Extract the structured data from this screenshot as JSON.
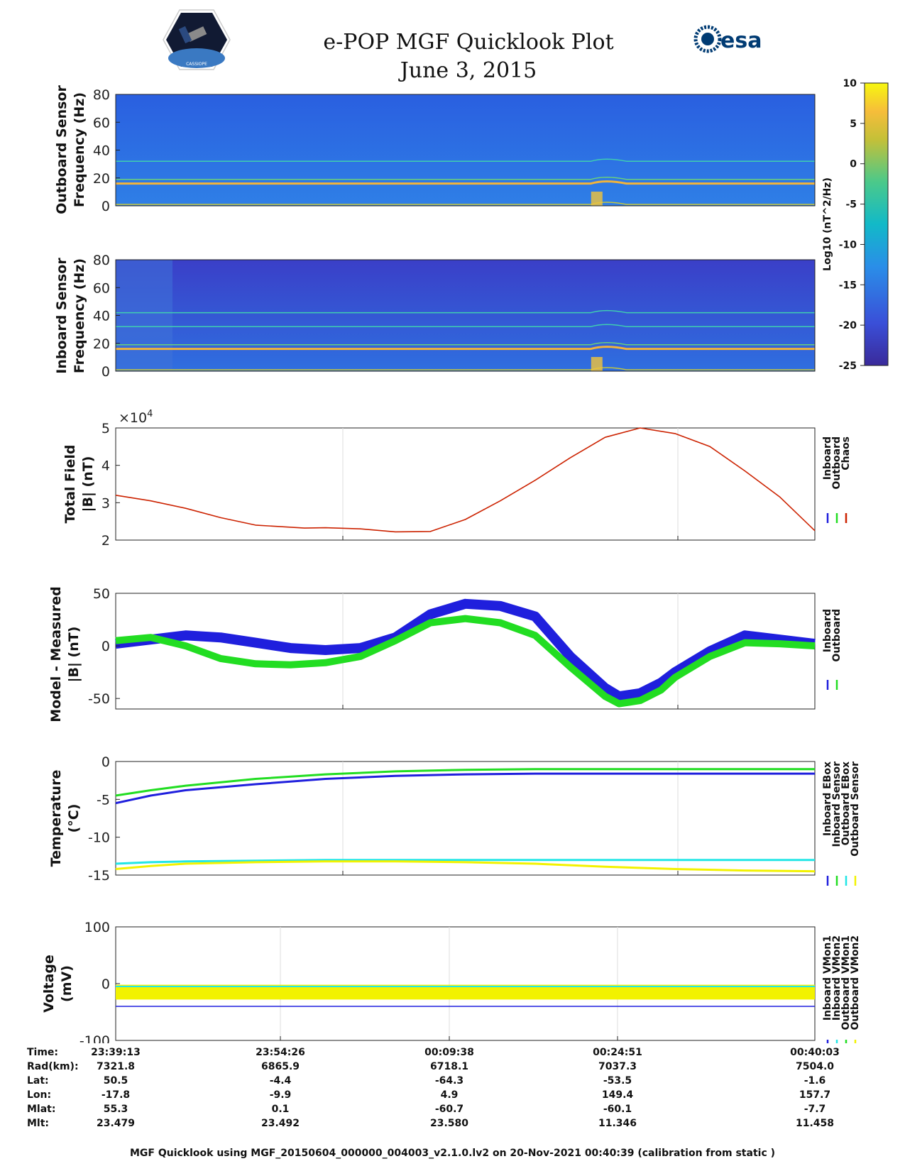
{
  "header": {
    "title_line1": "e-POP MGF Quicklook Plot",
    "title_line2": "June 3, 2015",
    "esa_logo_text": "esa",
    "satellite_logo_caption": "CASSIOPE"
  },
  "colors": {
    "inboard": "#1f1fdd",
    "outboard": "#22dd22",
    "chaos": "#cc2200",
    "inboard_sensor_temp": "#1f1fdd",
    "outboard_ebox": "#22e6e6",
    "outboard_sensor": "#f2f200"
  },
  "footer": "MGF Quicklook using MGF_20150604_000000_004003_v2.1.0.lv2 on 20-Nov-2021 00:40:39 (calibration from static )",
  "table": {
    "labels": [
      "Time:",
      "Rad(km):",
      "Lat:",
      "Lon:",
      "Mlat:",
      "Mlt:"
    ],
    "columns": [
      [
        "23:39:13",
        "7321.8",
        "50.5",
        "-17.8",
        "55.3",
        "23.479"
      ],
      [
        "23:54:26",
        "6865.9",
        "-4.4",
        "-9.9",
        "0.1",
        "23.492"
      ],
      [
        "00:09:38",
        "6718.1",
        "-64.3",
        "4.9",
        "-60.7",
        "23.580"
      ],
      [
        "00:24:51",
        "7037.3",
        "-53.5",
        "149.4",
        "-60.1",
        "11.346"
      ],
      [
        "00:40:03",
        "7504.0",
        "-1.6",
        "157.7",
        "-7.7",
        "11.458"
      ]
    ]
  },
  "chart_data": [
    {
      "type": "heatmap",
      "title": "",
      "ylabel_line1": "Outboard Sensor",
      "ylabel_line2": "Frequency (Hz)",
      "ylim": [
        0,
        80
      ],
      "yticks": [
        "0",
        "20",
        "40",
        "60",
        "80"
      ],
      "bands_hz": [
        1,
        16,
        19,
        32
      ],
      "colorbar": {
        "label": "Log10 (nT^2/Hz)",
        "range": [
          -25,
          10
        ],
        "ticks": [
          "10",
          "5",
          "0",
          "-5",
          "-10",
          "-15",
          "-20",
          "-25"
        ]
      }
    },
    {
      "type": "heatmap",
      "ylabel_line1": "Inboard Sensor",
      "ylabel_line2": "Frequency (Hz)",
      "ylim": [
        0,
        80
      ],
      "yticks": [
        "0",
        "20",
        "40",
        "60",
        "80"
      ],
      "bands_hz": [
        1,
        16,
        19,
        32,
        42
      ]
    },
    {
      "type": "line",
      "ylabel_line1": "Total Field",
      "ylabel_line2": "|B| (nT)",
      "ylim": [
        2,
        5
      ],
      "yticks": [
        "2",
        "3",
        "4",
        "5"
      ],
      "exponent_label": "×10",
      "exponent_power": "4",
      "x": [
        0,
        0.05,
        0.1,
        0.15,
        0.2,
        0.27,
        0.3,
        0.35,
        0.4,
        0.45,
        0.5,
        0.55,
        0.6,
        0.65,
        0.7,
        0.75,
        0.8,
        0.85,
        0.9,
        0.95,
        1.0
      ],
      "values": [
        3.2,
        3.05,
        2.85,
        2.6,
        2.4,
        2.32,
        2.33,
        2.3,
        2.22,
        2.23,
        2.55,
        3.05,
        3.6,
        4.2,
        4.75,
        5.0,
        4.85,
        4.5,
        3.85,
        3.15,
        2.25
      ],
      "series": [
        {
          "name": "Inboard"
        },
        {
          "name": "Outboard"
        },
        {
          "name": "Chaos"
        }
      ]
    },
    {
      "type": "line",
      "ylabel_line1": "Model - Measured",
      "ylabel_line2": "|B| (nT)",
      "ylim": [
        -60,
        50
      ],
      "yticks": [
        "-50",
        "0",
        "50"
      ],
      "x": [
        0,
        0.05,
        0.1,
        0.15,
        0.2,
        0.25,
        0.3,
        0.35,
        0.4,
        0.45,
        0.5,
        0.55,
        0.6,
        0.65,
        0.7,
        0.72,
        0.75,
        0.78,
        0.8,
        0.85,
        0.9,
        0.95,
        1.0
      ],
      "series": [
        {
          "name": "Inboard",
          "values": [
            2,
            6,
            10,
            8,
            3,
            -2,
            -4,
            -2,
            8,
            30,
            40,
            38,
            28,
            -10,
            -40,
            -48,
            -45,
            -35,
            -25,
            -5,
            10,
            6,
            2
          ]
        },
        {
          "name": "Outboard",
          "values": [
            5,
            8,
            0,
            -12,
            -17,
            -18,
            -16,
            -10,
            5,
            22,
            26,
            22,
            10,
            -20,
            -48,
            -55,
            -52,
            -42,
            -30,
            -10,
            3,
            2,
            0
          ]
        }
      ]
    },
    {
      "type": "line",
      "ylabel_line1": "Temperature",
      "ylabel_line2": "(°C)",
      "ylim": [
        -15,
        0
      ],
      "yticks": [
        "-15",
        "-10",
        "-5",
        "0"
      ],
      "x": [
        0,
        0.05,
        0.1,
        0.2,
        0.3,
        0.4,
        0.5,
        0.6,
        0.7,
        0.8,
        0.9,
        1.0
      ],
      "series": [
        {
          "name": "Inboard EBox",
          "values": [
            -4.5,
            -3.8,
            -3.2,
            -2.3,
            -1.7,
            -1.3,
            -1.1,
            -1.0,
            -1.0,
            -1.0,
            -1.0,
            -1.0
          ]
        },
        {
          "name": "Inboard Sensor",
          "values": [
            -5.5,
            -4.5,
            -3.8,
            -3.0,
            -2.3,
            -1.9,
            -1.7,
            -1.6,
            -1.6,
            -1.6,
            -1.6,
            -1.6
          ]
        },
        {
          "name": "Outboard EBox",
          "values": [
            -13.5,
            -13.3,
            -13.2,
            -13.1,
            -13.0,
            -13.0,
            -13.0,
            -13.0,
            -13.0,
            -13.0,
            -13.0,
            -13.0
          ]
        },
        {
          "name": "Outboard Sensor",
          "values": [
            -14.2,
            -13.8,
            -13.5,
            -13.3,
            -13.2,
            -13.2,
            -13.3,
            -13.5,
            -13.9,
            -14.2,
            -14.4,
            -14.5
          ]
        }
      ]
    },
    {
      "type": "line",
      "ylabel_line1": "Voltage",
      "ylabel_line2": "(mV)",
      "ylim": [
        -100,
        100
      ],
      "yticks": [
        "-100",
        "0",
        "100"
      ],
      "series": [
        {
          "name": "Inboard VMon1",
          "values": [
            -40,
            -40
          ]
        },
        {
          "name": "Inboard VMon2",
          "values": [
            -40,
            -40
          ]
        },
        {
          "name": "Outboard VMon1",
          "values": [
            -5,
            -5
          ]
        },
        {
          "name": "Outboard VMon2",
          "values": [
            -15,
            -15
          ]
        }
      ]
    }
  ]
}
